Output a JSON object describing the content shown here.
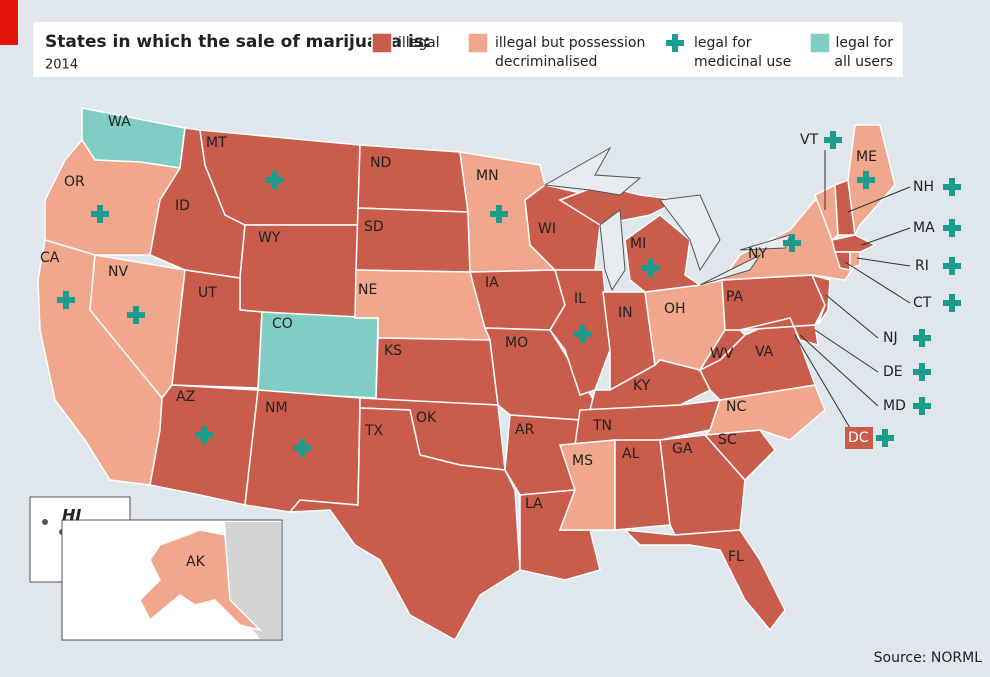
{
  "title": "States in which the sale of marijuana is:",
  "subtitle": "2014",
  "legend": [
    {
      "lines": [
        "illegal"
      ]
    },
    {
      "lines": [
        "illegal but possession",
        "decriminalised"
      ]
    },
    {
      "lines": [
        "legal for",
        "medicinal use"
      ]
    },
    {
      "lines": [
        "legal for",
        "all users"
      ]
    }
  ],
  "states": [
    "WA",
    "OR",
    "CA",
    "NV",
    "ID",
    "MT",
    "WY",
    "UT",
    "CO",
    "AZ",
    "NM",
    "ND",
    "SD",
    "NE",
    "KS",
    "OK",
    "TX",
    "MN",
    "IA",
    "MO",
    "AR",
    "LA",
    "WI",
    "IL",
    "IN",
    "OH",
    "KY",
    "TN",
    "MS",
    "AL",
    "GA",
    "FL",
    "SC",
    "NC",
    "VA",
    "WV",
    "PA",
    "NY",
    "MI",
    "VT",
    "ME",
    "NH",
    "MA",
    "RI",
    "CT",
    "NJ",
    "DE",
    "MD",
    "DC",
    "HI",
    "AK"
  ],
  "source": "Source: NORML"
}
